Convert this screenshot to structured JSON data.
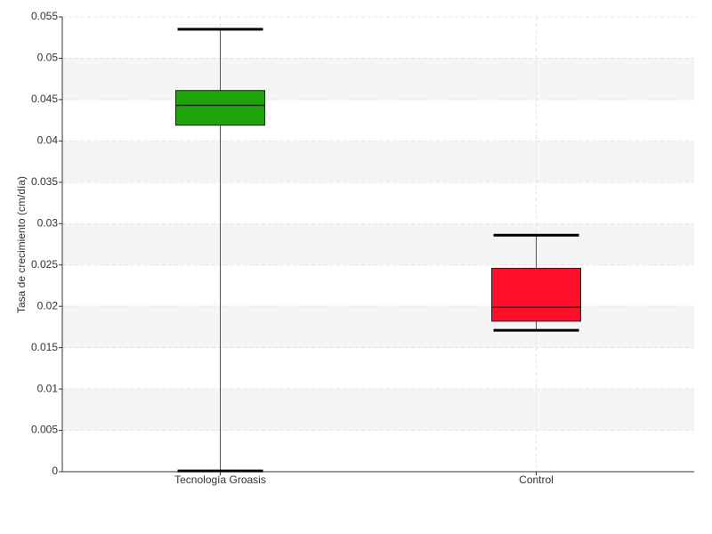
{
  "chart_data": {
    "type": "box",
    "y_label": "Tasa de crecimiento (cm/día)",
    "categories": [
      "Tecnología Groasis",
      "Control"
    ],
    "boxes": [
      {
        "color": "#1ea30a",
        "whisker_low": 0.0001,
        "q1": 0.0419,
        "median": 0.0443,
        "q3": 0.0461,
        "whisker_high": 0.0535
      },
      {
        "color": "#ff0e2a",
        "whisker_low": 0.0171,
        "q1": 0.0182,
        "median": 0.0199,
        "q3": 0.0246,
        "whisker_high": 0.0286
      }
    ],
    "ylim": [
      0,
      0.055
    ],
    "yticks": [
      0,
      0.005,
      0.01,
      0.015,
      0.02,
      0.025,
      0.03,
      0.035,
      0.04,
      0.045,
      0.05,
      0.055
    ],
    "grid": true
  }
}
